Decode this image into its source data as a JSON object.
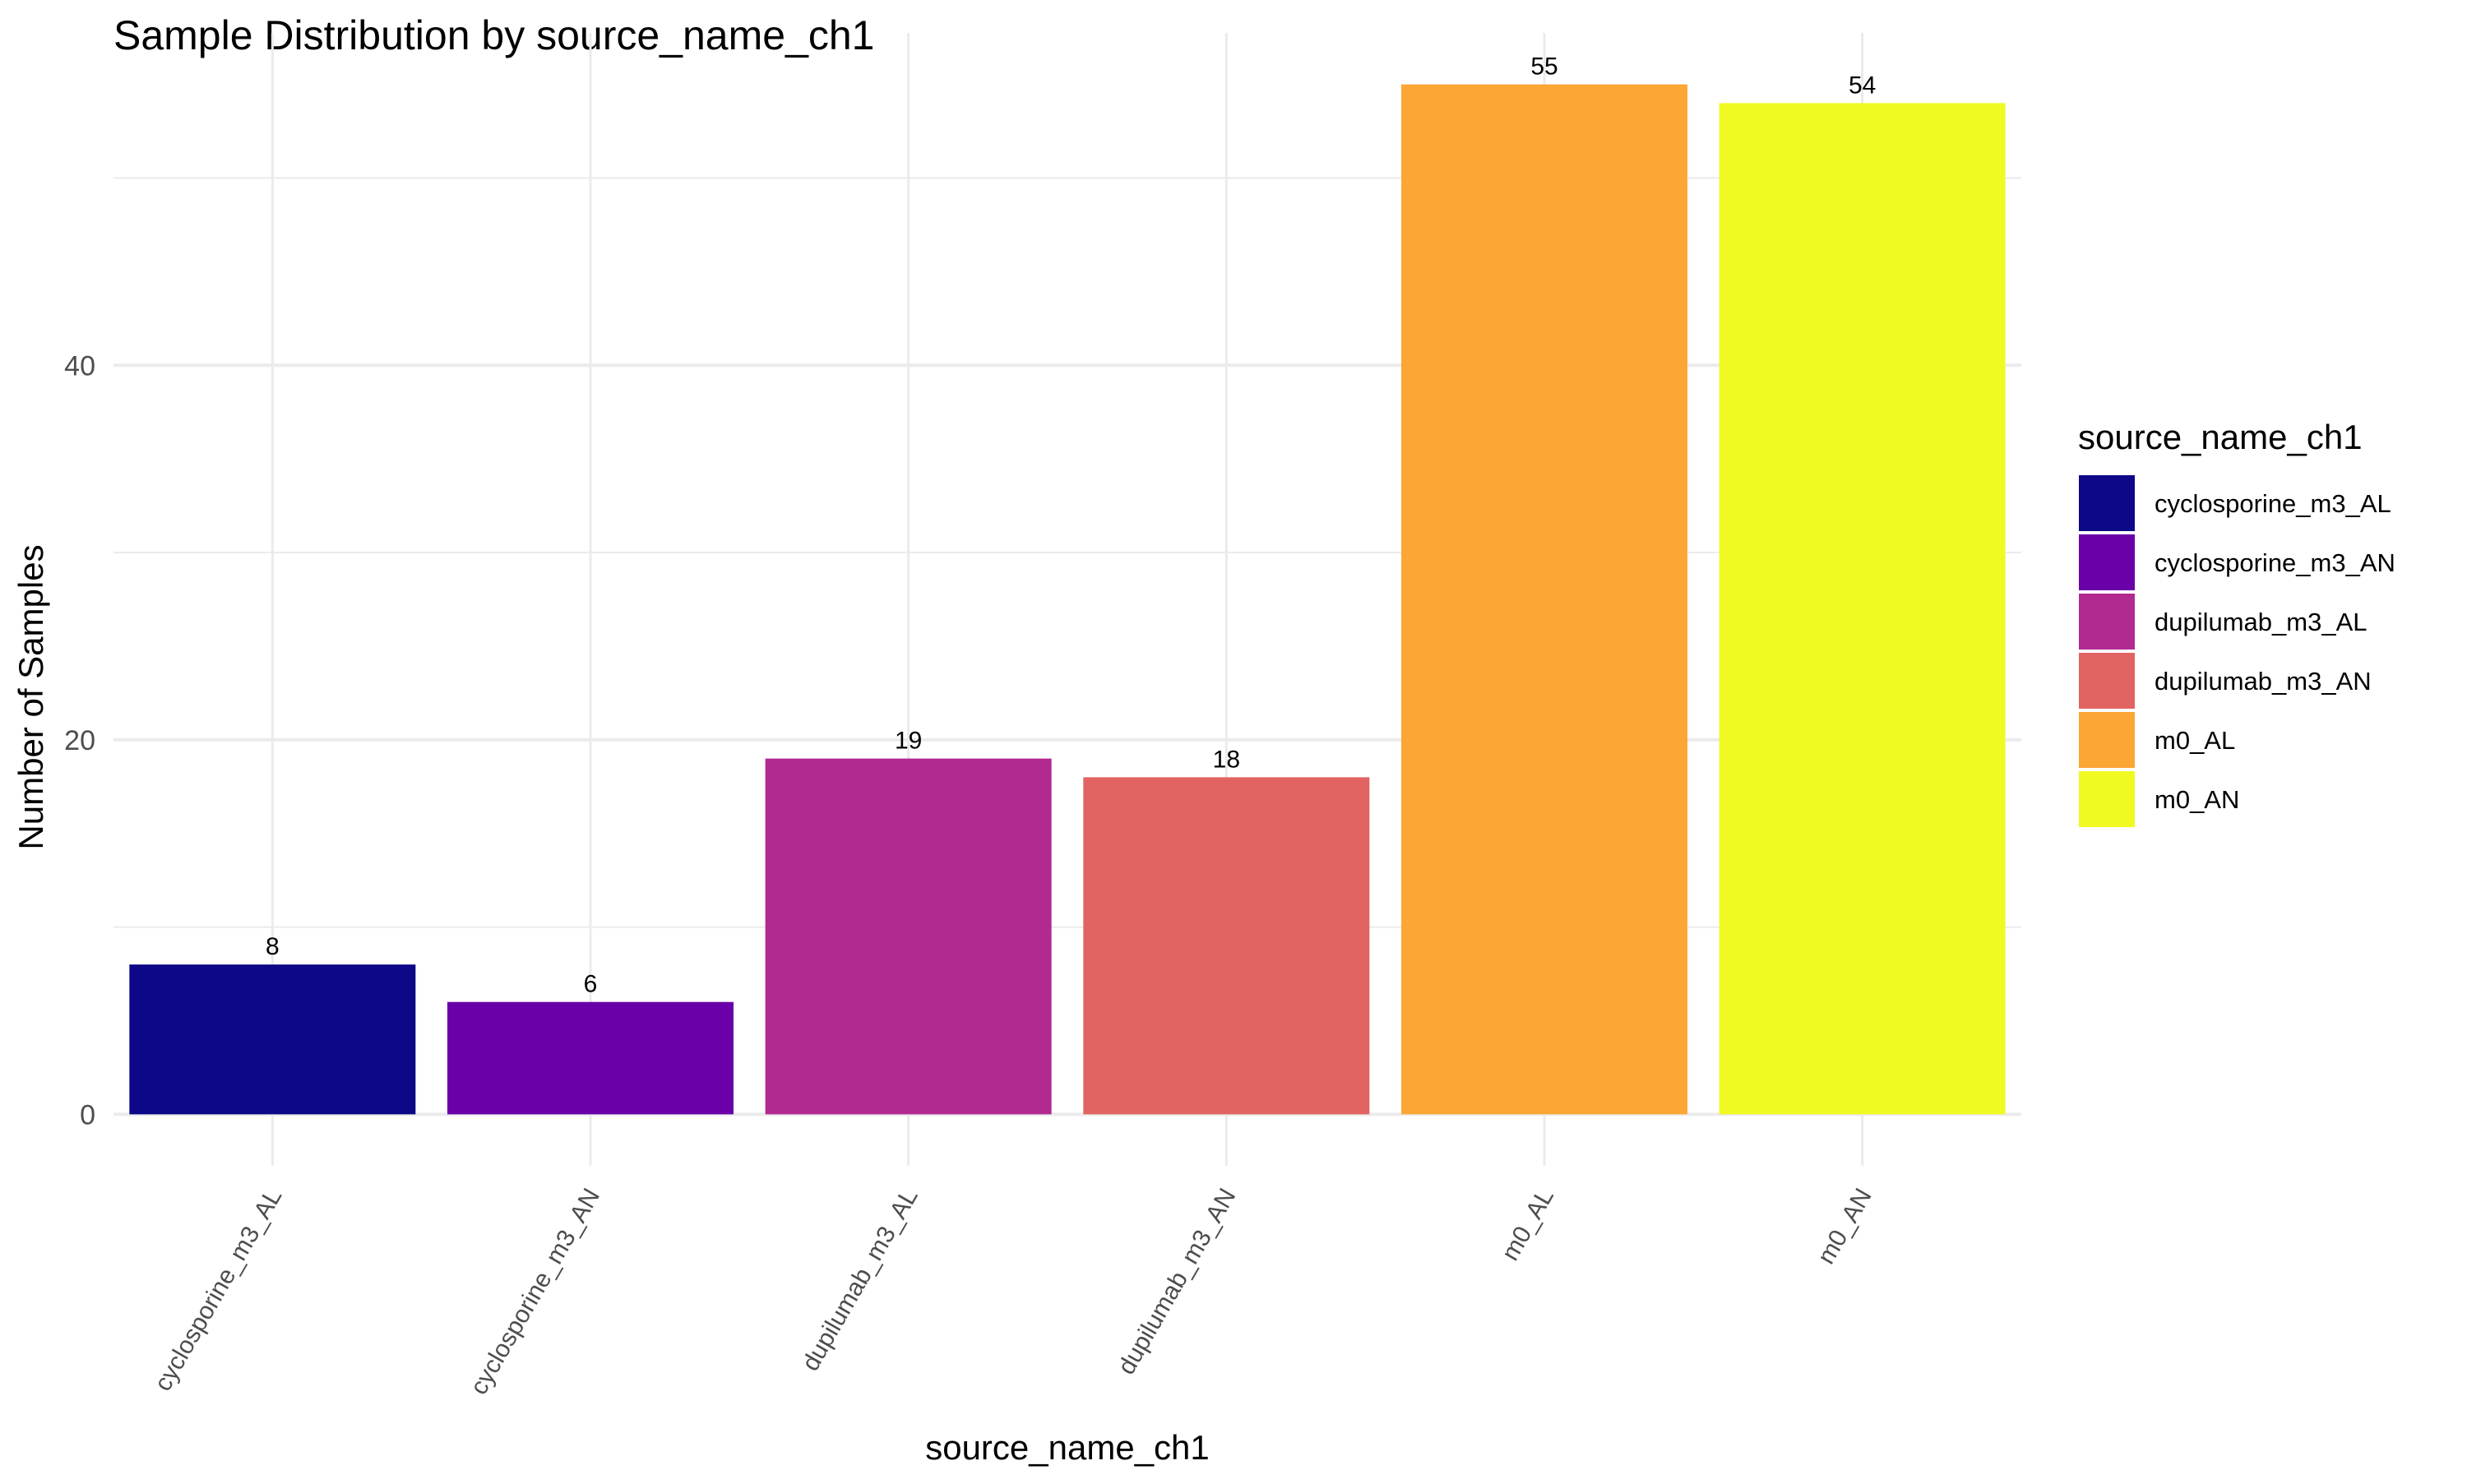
{
  "chart_data": {
    "type": "bar",
    "title": "Sample Distribution by source_name_ch1",
    "xlabel": "source_name_ch1",
    "ylabel": "Number of Samples",
    "categories": [
      "cyclosporine_m3_AL",
      "cyclosporine_m3_AN",
      "dupilumab_m3_AL",
      "dupilumab_m3_AN",
      "m0_AL",
      "m0_AN"
    ],
    "values": [
      8,
      6,
      19,
      18,
      55,
      54
    ],
    "colors": [
      "#0d0887",
      "#6a00a8",
      "#b12a90",
      "#e16462",
      "#fca636",
      "#f0f921"
    ],
    "ylim": [
      -2.75,
      57.75
    ],
    "yticks": [
      0,
      20,
      40
    ],
    "grid": true,
    "legend": {
      "title": "source_name_ch1",
      "position": "right",
      "entries": [
        "cyclosporine_m3_AL",
        "cyclosporine_m3_AN",
        "dupilumab_m3_AL",
        "dupilumab_m3_AN",
        "m0_AL",
        "m0_AN"
      ]
    }
  }
}
